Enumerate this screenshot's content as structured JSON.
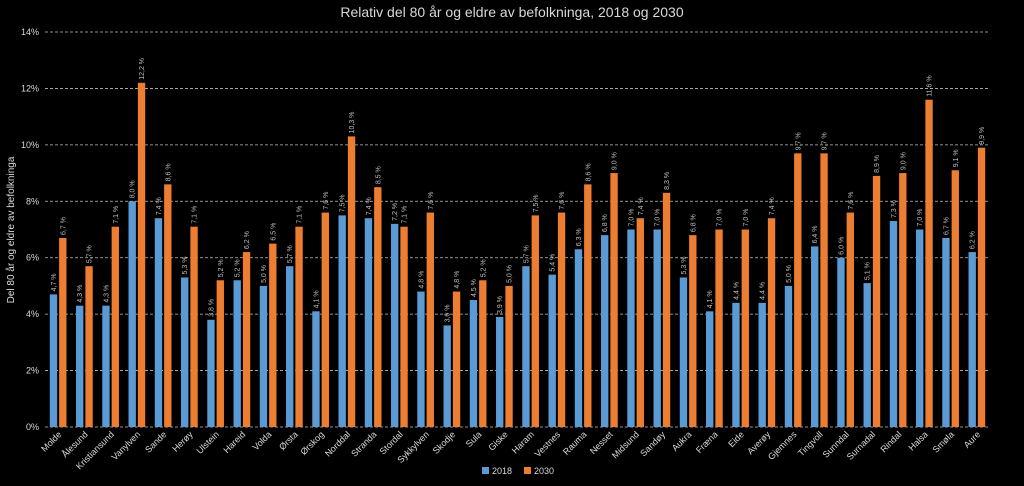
{
  "chart_data": {
    "type": "bar",
    "title": "Relativ del 80 år og eldre av befolkninga, 2018 og 2030",
    "y_label": "Del 80 år og eldre av befolkninga",
    "categories": [
      "Molde",
      "Ålesund",
      "Kristiansund",
      "Vanylven",
      "Sande",
      "Herøy",
      "Ulstein",
      "Hareid",
      "Volda",
      "Ørsta",
      "Ørskog",
      "Norddal",
      "Stranda",
      "Stordal",
      "Sykkylven",
      "Skodje",
      "Sula",
      "Giske",
      "Haram",
      "Vestnes",
      "Rauma",
      "Nesset",
      "Midsund",
      "Sandøy",
      "Aukra",
      "Fræna",
      "Eide",
      "Averøy",
      "Gjemnes",
      "Tingvoll",
      "Sunndal",
      "Surnadal",
      "Rindal",
      "Halsa",
      "Smøla",
      "Aure"
    ],
    "series": [
      {
        "name": "2018",
        "color": "#5b9bd5",
        "values": [
          4.7,
          4.3,
          4.3,
          8.0,
          7.4,
          5.3,
          3.8,
          5.2,
          5.0,
          5.7,
          4.1,
          7.5,
          7.4,
          7.2,
          4.8,
          3.6,
          4.5,
          3.9,
          5.7,
          5.4,
          6.3,
          6.8,
          7.0,
          7.0,
          5.3,
          4.1,
          4.4,
          4.4,
          5.0,
          6.4,
          6.0,
          5.1,
          7.3,
          7.0,
          6.7,
          6.2
        ],
        "value_labels": [
          "4,7 %",
          "4,3 %",
          "4,3 %",
          "8,0 %",
          "7,4 %",
          "5,3 %",
          "3,8 %",
          "5,2 %",
          "5,0 %",
          "5,7 %",
          "4,1 %",
          "7,5 %",
          "7,4 %",
          "7,2 %",
          "4,8 %",
          "3,6 %",
          "4,5 %",
          "3,9 %",
          "5,7 %",
          "5,4 %",
          "6,3 %",
          "6,8 %",
          "7,0 %",
          "7,0 %",
          "5,3 %",
          "4,1 %",
          "4,4 %",
          "4,4 %",
          "5,0 %",
          "6,4 %",
          "6,0 %",
          "5,1 %",
          "7,3 %",
          "7,0 %",
          "6,7 %",
          "6,2 %"
        ]
      },
      {
        "name": "2030",
        "color": "#ed7d31",
        "values": [
          6.7,
          5.7,
          7.1,
          12.2,
          8.6,
          7.1,
          5.2,
          6.2,
          6.5,
          7.1,
          7.6,
          10.3,
          8.5,
          7.1,
          7.6,
          4.8,
          5.2,
          5.0,
          7.5,
          7.6,
          8.6,
          9.0,
          7.4,
          8.3,
          6.8,
          7.0,
          7.0,
          7.4,
          9.7,
          9.7,
          7.6,
          8.9,
          9.0,
          11.6,
          9.1,
          9.9
        ],
        "value_labels": [
          "6,7 %",
          "5,7 %",
          "7,1 %",
          "12,2 %",
          "8,6 %",
          "7,1 %",
          "5,2 %",
          "6,2 %",
          "6,5 %",
          "7,1 %",
          "7,6 %",
          "10,3 %",
          "8,5 %",
          "7,1 %",
          "7,6 %",
          "4,8 %",
          "5,2 %",
          "5,0 %",
          "7,5 %",
          "7,6 %",
          "8,6 %",
          "9,0 %",
          "7,4 %",
          "8,3 %",
          "6,8 %",
          "7,0 %",
          "7,0 %",
          "7,4 %",
          "9,7 %",
          "9,7 %",
          "7,6 %",
          "8,9 %",
          "9,0 %",
          "11,6 %",
          "9,1 %",
          "9,9 %"
        ]
      }
    ],
    "ylim": [
      0,
      14
    ],
    "yticks": [
      {
        "value": 0,
        "label": "0%"
      },
      {
        "value": 2,
        "label": "2%"
      },
      {
        "value": 4,
        "label": "4%"
      },
      {
        "value": 6,
        "label": "6%"
      },
      {
        "value": 8,
        "label": "8%"
      },
      {
        "value": 10,
        "label": "10%"
      },
      {
        "value": 12,
        "label": "12%"
      },
      {
        "value": 14,
        "label": "14%"
      }
    ],
    "grid": true,
    "legend": "bottom"
  }
}
